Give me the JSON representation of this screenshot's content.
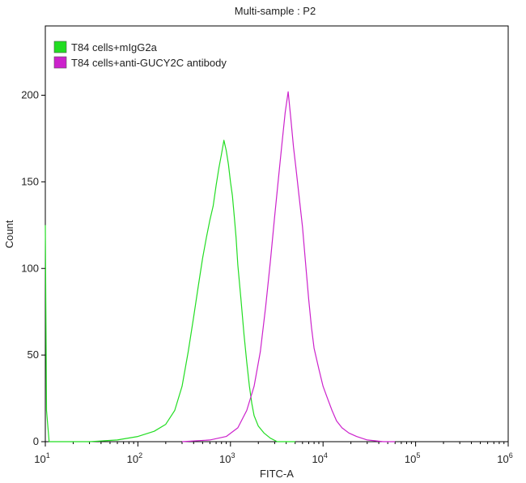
{
  "chart_data": {
    "type": "line",
    "title": "Multi-sample : P2",
    "xlabel": "FITC-A",
    "ylabel": "Count",
    "xscale": "log",
    "xlim": [
      10,
      1000000
    ],
    "ylim": [
      0,
      240
    ],
    "x_ticks": [
      {
        "base": "10",
        "exp": "1",
        "value": 10
      },
      {
        "base": "10",
        "exp": "2",
        "value": 100
      },
      {
        "base": "10",
        "exp": "3",
        "value": 1000
      },
      {
        "base": "10",
        "exp": "4",
        "value": 10000
      },
      {
        "base": "10",
        "exp": "5",
        "value": 100000
      },
      {
        "base": "10",
        "exp": "6",
        "value": 1000000
      }
    ],
    "y_ticks": [
      0,
      50,
      100,
      150,
      200
    ],
    "legend_position": "top-left",
    "series": [
      {
        "name": "T84 cells+mIgG2a",
        "color": "#22dd22",
        "points": [
          [
            10,
            125
          ],
          [
            10.3,
            18
          ],
          [
            11,
            0
          ],
          [
            30,
            0
          ],
          [
            60,
            1
          ],
          [
            100,
            3
          ],
          [
            150,
            6
          ],
          [
            200,
            10
          ],
          [
            250,
            18
          ],
          [
            300,
            32
          ],
          [
            350,
            52
          ],
          [
            400,
            72
          ],
          [
            450,
            90
          ],
          [
            500,
            106
          ],
          [
            550,
            118
          ],
          [
            600,
            128
          ],
          [
            650,
            136
          ],
          [
            700,
            148
          ],
          [
            750,
            158
          ],
          [
            800,
            166
          ],
          [
            850,
            174
          ],
          [
            900,
            168
          ],
          [
            950,
            160
          ],
          [
            1000,
            150
          ],
          [
            1050,
            142
          ],
          [
            1100,
            130
          ],
          [
            1150,
            118
          ],
          [
            1200,
            102
          ],
          [
            1300,
            82
          ],
          [
            1400,
            62
          ],
          [
            1500,
            46
          ],
          [
            1600,
            32
          ],
          [
            1700,
            22
          ],
          [
            1800,
            15
          ],
          [
            2000,
            9
          ],
          [
            2300,
            5
          ],
          [
            2700,
            2
          ],
          [
            3200,
            0
          ],
          [
            5000,
            0
          ]
        ]
      },
      {
        "name": "T84 cells+anti-GUCY2C antibody",
        "color": "#cc22cc",
        "points": [
          [
            300,
            0
          ],
          [
            600,
            1
          ],
          [
            900,
            3
          ],
          [
            1200,
            8
          ],
          [
            1500,
            18
          ],
          [
            1800,
            32
          ],
          [
            2100,
            52
          ],
          [
            2400,
            78
          ],
          [
            2700,
            104
          ],
          [
            3000,
            130
          ],
          [
            3300,
            152
          ],
          [
            3600,
            172
          ],
          [
            3900,
            190
          ],
          [
            4200,
            202
          ],
          [
            4500,
            186
          ],
          [
            4800,
            170
          ],
          [
            5100,
            158
          ],
          [
            5500,
            142
          ],
          [
            6000,
            124
          ],
          [
            6500,
            102
          ],
          [
            7000,
            82
          ],
          [
            7500,
            66
          ],
          [
            8000,
            54
          ],
          [
            9000,
            42
          ],
          [
            10000,
            32
          ],
          [
            11000,
            26
          ],
          [
            12500,
            18
          ],
          [
            14000,
            12
          ],
          [
            16000,
            8
          ],
          [
            19000,
            5
          ],
          [
            23000,
            3
          ],
          [
            30000,
            1
          ],
          [
            45000,
            0
          ],
          [
            60000,
            0
          ]
        ]
      }
    ]
  }
}
